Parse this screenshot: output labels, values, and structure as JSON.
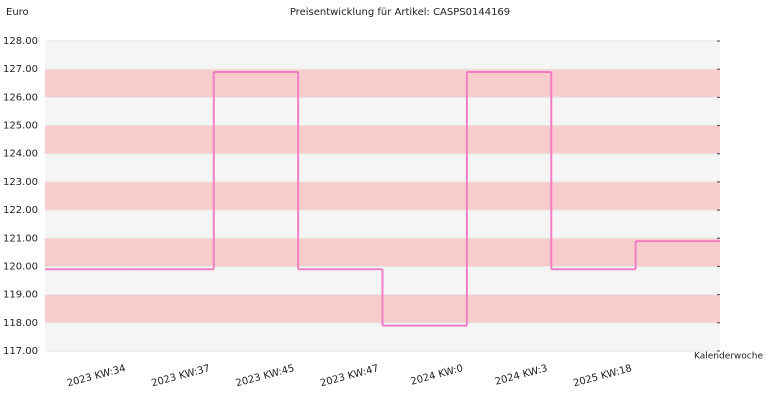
{
  "chart_data": {
    "type": "step",
    "title": "Preisentwicklung für Artikel: CASPS0144169",
    "y_label": "Euro",
    "x_label": "Kalenderwoche",
    "categories": [
      null,
      "2023 KW:34",
      "2023 KW:37",
      "2023 KW:45",
      "2023 KW:47",
      "2024 KW:0",
      "2024 KW:3",
      "2025 KW:18"
    ],
    "values": [
      119.9,
      119.9,
      126.9,
      119.9,
      117.9,
      126.9,
      119.9,
      120.9
    ],
    "color": "#f27fc6",
    "ylim": [
      117,
      128
    ],
    "yticks": [
      {
        "value": 117,
        "label": "117.00"
      },
      {
        "value": 118,
        "label": "118.00"
      },
      {
        "value": 119,
        "label": "119.00"
      },
      {
        "value": 120,
        "label": "120.00"
      },
      {
        "value": 121,
        "label": "121.00"
      },
      {
        "value": 122,
        "label": "122.00"
      },
      {
        "value": 123,
        "label": "123.00"
      },
      {
        "value": 124,
        "label": "124.00"
      },
      {
        "value": 125,
        "label": "125.00"
      },
      {
        "value": 126,
        "label": "126.00"
      },
      {
        "value": 127,
        "label": "127.00"
      },
      {
        "value": 128,
        "label": "128.00"
      }
    ]
  }
}
